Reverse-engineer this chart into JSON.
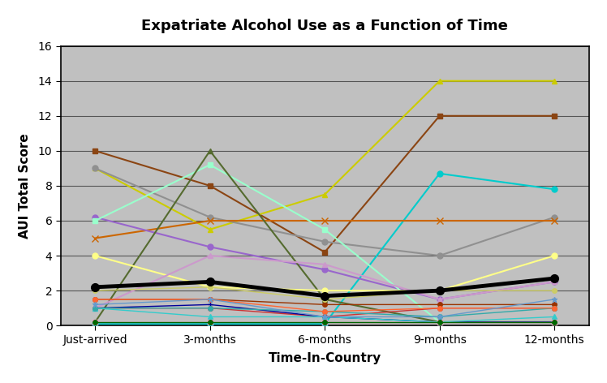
{
  "title": "Expatriate Alcohol Use as a Function of Time",
  "xlabel": "Time-In-Country",
  "ylabel": "AUI Total Score",
  "x_labels": [
    "Just-arrived",
    "3-months",
    "6-months",
    "9-months",
    "12-months"
  ],
  "ylim": [
    0,
    16
  ],
  "yticks": [
    0,
    2,
    4,
    6,
    8,
    10,
    12,
    14,
    16
  ],
  "bg_color": "#C0C0C0",
  "fig_color": "#FFFFFF",
  "series": [
    {
      "color": "#8B4513",
      "marker": "s",
      "values": [
        10,
        8,
        4.2,
        12,
        12
      ],
      "lw": 1.5,
      "ms": 5
    },
    {
      "color": "#CCCC00",
      "marker": "^",
      "values": [
        9,
        5.5,
        7.5,
        14,
        14
      ],
      "lw": 1.5,
      "ms": 5
    },
    {
      "color": "#909090",
      "marker": "o",
      "values": [
        9,
        6.2,
        4.8,
        4,
        6.2
      ],
      "lw": 1.5,
      "ms": 5
    },
    {
      "color": "#00CCCC",
      "marker": "o",
      "values": [
        0.1,
        0.1,
        0.1,
        8.7,
        7.8
      ],
      "lw": 1.5,
      "ms": 5
    },
    {
      "color": "#CC6600",
      "marker": "x",
      "values": [
        5,
        6,
        6,
        6,
        6
      ],
      "lw": 1.5,
      "ms": 6
    },
    {
      "color": "#9966CC",
      "marker": "o",
      "values": [
        6.2,
        4.5,
        3.2,
        1.5,
        2.5
      ],
      "lw": 1.5,
      "ms": 5
    },
    {
      "color": "#99FFCC",
      "marker": "s",
      "values": [
        6,
        9.2,
        5.5,
        0.2,
        0.2
      ],
      "lw": 1.5,
      "ms": 5
    },
    {
      "color": "#556B2F",
      "marker": "^",
      "values": [
        0.2,
        10,
        1.5,
        0.2,
        0.2
      ],
      "lw": 1.5,
      "ms": 5
    },
    {
      "color": "#FFFF88",
      "marker": "o",
      "values": [
        4,
        2.2,
        2,
        2,
        4
      ],
      "lw": 1.5,
      "ms": 5
    },
    {
      "color": "#CC99CC",
      "marker": "^",
      "values": [
        1,
        4,
        3.5,
        1.5,
        2.5
      ],
      "lw": 1.5,
      "ms": 5
    },
    {
      "color": "#CC3333",
      "marker": "o",
      "values": [
        1,
        1,
        0.5,
        1,
        1
      ],
      "lw": 1.0,
      "ms": 4
    },
    {
      "color": "#993300",
      "marker": "o",
      "values": [
        1.5,
        1.5,
        1.2,
        1.2,
        1.2
      ],
      "lw": 1.0,
      "ms": 4
    },
    {
      "color": "#000099",
      "marker": "+",
      "values": [
        1,
        1.2,
        0.5,
        0.2,
        0.2
      ],
      "lw": 1.0,
      "ms": 5
    },
    {
      "color": "#33CCCC",
      "marker": "^",
      "values": [
        1,
        0.5,
        0.5,
        0.2,
        0.5
      ],
      "lw": 1.0,
      "ms": 4
    },
    {
      "color": "#FF99CC",
      "marker": "s",
      "values": [
        0.2,
        0.2,
        0.2,
        0.2,
        0.2
      ],
      "lw": 1.0,
      "ms": 4
    },
    {
      "color": "#33AAAA",
      "marker": "o",
      "values": [
        1,
        1,
        0.8,
        0.5,
        1
      ],
      "lw": 1.0,
      "ms": 4
    },
    {
      "color": "#FF6633",
      "marker": "o",
      "values": [
        1.5,
        1.5,
        0.8,
        1,
        1
      ],
      "lw": 1.0,
      "ms": 4
    },
    {
      "color": "#CCCC66",
      "marker": "o",
      "values": [
        2,
        2.2,
        1.5,
        2,
        2
      ],
      "lw": 1.0,
      "ms": 4
    },
    {
      "color": "#006600",
      "marker": "o",
      "values": [
        0.2,
        0.2,
        0.2,
        0.2,
        0.2
      ],
      "lw": 1.0,
      "ms": 4
    },
    {
      "color": "#6699CC",
      "marker": "*",
      "values": [
        1.2,
        1.5,
        0.5,
        0.5,
        1.5
      ],
      "lw": 1.0,
      "ms": 5
    },
    {
      "color": "#000000",
      "marker": "o",
      "values": [
        2.2,
        2.5,
        1.7,
        2.0,
        2.7
      ],
      "lw": 3.5,
      "ms": 7
    }
  ]
}
